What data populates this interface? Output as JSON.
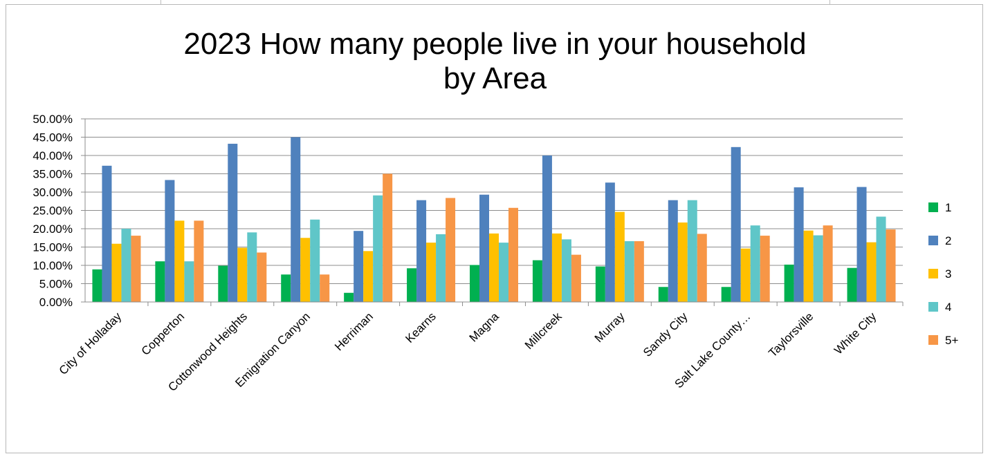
{
  "chart_data": {
    "type": "bar",
    "title_line1": "2023 How many people live in your household",
    "title_line2": "by Area",
    "categories": [
      "City of Holladay",
      "Copperton",
      "Cottonwood Heights",
      "Emigration Canyon",
      "Herriman",
      "Kearns",
      "Magna",
      "Millcreek",
      "Murray",
      "Sandy City",
      "Salt Lake County…",
      "Taylorsville",
      "White City"
    ],
    "series": [
      {
        "name": "1",
        "color": "#00b050",
        "values": [
          8.9,
          11.1,
          9.9,
          7.5,
          2.5,
          9.2,
          10.1,
          11.4,
          9.7,
          4.1,
          4.1,
          10.2,
          9.3
        ]
      },
      {
        "name": "2",
        "color": "#4f81bd",
        "values": [
          37.2,
          33.3,
          43.2,
          45.0,
          19.4,
          27.8,
          29.3,
          40.0,
          32.6,
          27.8,
          42.3,
          31.3,
          31.4
        ]
      },
      {
        "name": "3",
        "color": "#ffc000",
        "values": [
          15.9,
          22.2,
          14.8,
          17.5,
          13.9,
          16.2,
          18.7,
          18.7,
          24.6,
          21.7,
          14.6,
          19.5,
          16.3
        ]
      },
      {
        "name": "4",
        "color": "#5fc6c8",
        "values": [
          20.0,
          11.1,
          19.0,
          22.5,
          29.1,
          18.5,
          16.2,
          17.1,
          16.6,
          27.8,
          20.9,
          18.2,
          23.3
        ]
      },
      {
        "name": "5+",
        "color": "#f79646",
        "values": [
          18.1,
          22.2,
          13.5,
          7.5,
          35.0,
          28.4,
          25.7,
          12.9,
          16.6,
          18.6,
          18.1,
          20.9,
          19.8
        ]
      }
    ],
    "y_ticks": [
      "0.00%",
      "5.00%",
      "10.00%",
      "15.00%",
      "20.00%",
      "25.00%",
      "30.00%",
      "35.00%",
      "40.00%",
      "45.00%",
      "50.00%"
    ],
    "ylim": [
      0,
      50
    ],
    "grid": true,
    "legend_position": "right"
  }
}
